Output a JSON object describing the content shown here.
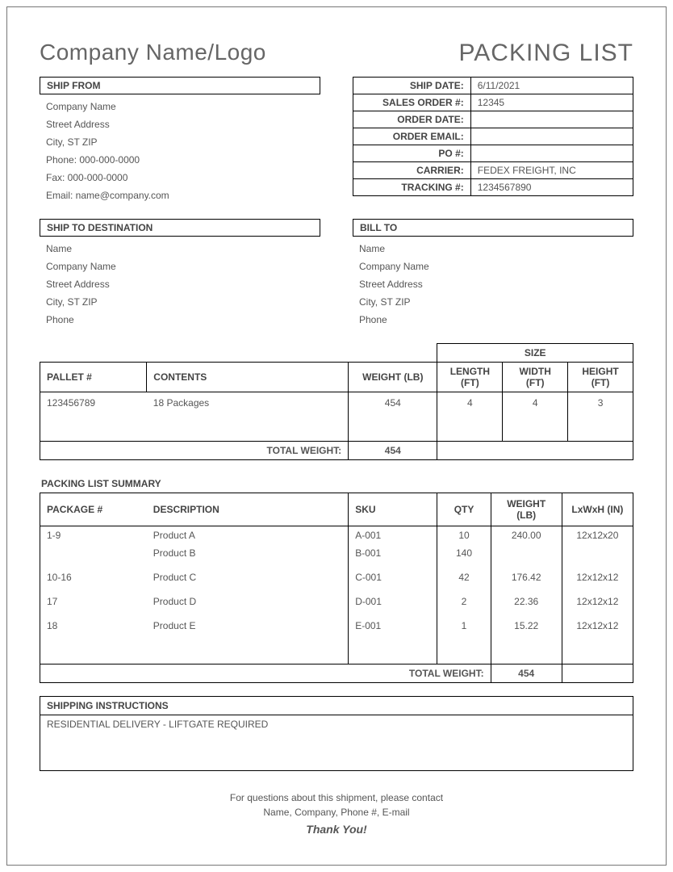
{
  "header": {
    "company_logo": "Company Name/Logo",
    "doc_title": "PACKING LIST"
  },
  "ship_from": {
    "title": "SHIP FROM",
    "lines": [
      "Company Name",
      "Street Address",
      "City, ST  ZIP",
      "Phone: 000-000-0000",
      "Fax: 000-000-0000",
      "Email: name@company.com"
    ]
  },
  "order_info": {
    "rows": [
      {
        "label": "SHIP DATE:",
        "value": "6/11/2021"
      },
      {
        "label": "SALES ORDER #:",
        "value": "12345"
      },
      {
        "label": "ORDER DATE:",
        "value": ""
      },
      {
        "label": "ORDER EMAIL:",
        "value": ""
      },
      {
        "label": "PO #:",
        "value": ""
      },
      {
        "label": "CARRIER:",
        "value": "FEDEX FREIGHT, INC"
      },
      {
        "label": "TRACKING #:",
        "value": "1234567890"
      }
    ]
  },
  "ship_to": {
    "title": "SHIP TO DESTINATION",
    "lines": [
      "Name",
      "Company Name",
      "Street Address",
      "City, ST  ZIP",
      "Phone"
    ]
  },
  "bill_to": {
    "title": "BILL TO",
    "lines": [
      "Name",
      "Company Name",
      "Street Address",
      "City, ST  ZIP",
      "Phone"
    ]
  },
  "pallet": {
    "size_header": "SIZE",
    "headers": {
      "pallet": "PALLET #",
      "contents": "CONTENTS",
      "weight": "WEIGHT (LB)",
      "length": "LENGTH (FT)",
      "width": "WIDTH (FT)",
      "height": "HEIGHT (FT)"
    },
    "row": {
      "pallet": "123456789",
      "contents": "18 Packages",
      "weight": "454",
      "length": "4",
      "width": "4",
      "height": "3"
    },
    "total_label": "TOTAL WEIGHT:",
    "total_value": "454"
  },
  "summary": {
    "title": "PACKING LIST SUMMARY",
    "headers": {
      "package": "PACKAGE #",
      "description": "DESCRIPTION",
      "sku": "SKU",
      "qty": "QTY",
      "weight": "WEIGHT (LB)",
      "dims": "LxWxH (IN)"
    },
    "rows": [
      {
        "package": "1-9",
        "description": "Product A",
        "sku": "A-001",
        "qty": "10",
        "weight": "240.00",
        "dims": "12x12x20"
      },
      {
        "package": "",
        "description": "Product B",
        "sku": "B-001",
        "qty": "140",
        "weight": "",
        "dims": ""
      },
      {
        "package": "10-16",
        "description": "Product C",
        "sku": "C-001",
        "qty": "42",
        "weight": "176.42",
        "dims": "12x12x12"
      },
      {
        "package": "17",
        "description": "Product D",
        "sku": "D-001",
        "qty": "2",
        "weight": "22.36",
        "dims": "12x12x12"
      },
      {
        "package": "18",
        "description": "Product E",
        "sku": "E-001",
        "qty": "1",
        "weight": "15.22",
        "dims": "12x12x12"
      }
    ],
    "total_label": "TOTAL WEIGHT:",
    "total_value": "454"
  },
  "instructions": {
    "title": "SHIPPING INSTRUCTIONS",
    "body": "RESIDENTIAL DELIVERY - LIFTGATE REQUIRED"
  },
  "footer": {
    "line1": "For questions about this shipment, please contact",
    "line2": "Name, Company, Phone #, E-mail",
    "thanks": "Thank You!"
  },
  "style": {
    "border_color": "#000000",
    "text_color": "#555555",
    "heading_color": "#666666",
    "background": "#ffffff"
  }
}
